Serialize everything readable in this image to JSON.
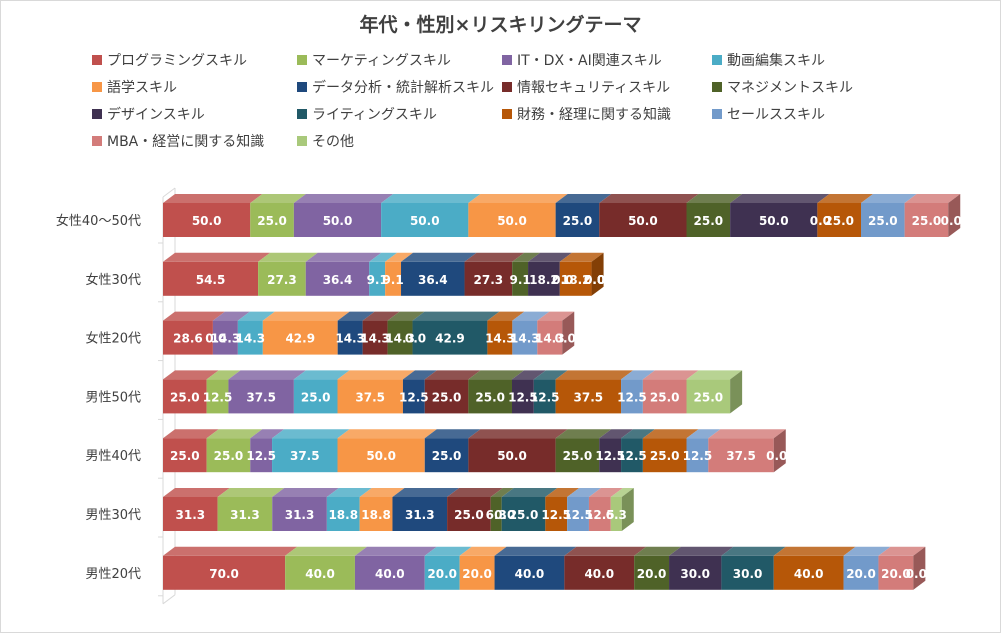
{
  "chart_data": {
    "type": "bar",
    "stacked": true,
    "orientation": "horizontal",
    "three_d": true,
    "title": "年代・性別×リスキリングテーマ",
    "legend_position": "top",
    "categories": [
      "女性40～50代",
      "女性30代",
      "女性20代",
      "男性50代",
      "男性40代",
      "男性30代",
      "男性20代"
    ],
    "series": [
      {
        "name": "プログラミングスキル",
        "color": "#c0504d",
        "values": [
          50.0,
          54.5,
          28.6,
          25.0,
          25.0,
          31.3,
          70.0
        ]
      },
      {
        "name": "マーケティングスキル",
        "color": "#9bbb59",
        "values": [
          25.0,
          27.3,
          0.0,
          12.5,
          25.0,
          31.3,
          40.0
        ]
      },
      {
        "name": "IT・DX・AI関連スキル",
        "color": "#8064a2",
        "values": [
          50.0,
          36.4,
          14.3,
          37.5,
          12.5,
          31.3,
          40.0
        ]
      },
      {
        "name": "動画編集スキル",
        "color": "#4bacc6",
        "values": [
          50.0,
          9.1,
          14.3,
          25.0,
          37.5,
          18.8,
          20.0
        ]
      },
      {
        "name": "語学スキル",
        "color": "#f79646",
        "values": [
          50.0,
          9.1,
          42.9,
          37.5,
          50.0,
          18.8,
          20.0
        ]
      },
      {
        "name": "データ分析・統計解析スキル",
        "color": "#1f497d",
        "values": [
          25.0,
          36.4,
          14.3,
          12.5,
          25.0,
          31.3,
          40.0
        ]
      },
      {
        "name": "情報セキュリティスキル",
        "color": "#772c2a",
        "values": [
          50.0,
          27.3,
          14.3,
          25.0,
          50.0,
          25.0,
          40.0
        ]
      },
      {
        "name": "マネジメントスキル",
        "color": "#4f6228",
        "values": [
          25.0,
          9.1,
          14.3,
          25.0,
          25.0,
          6.3,
          20.0
        ]
      },
      {
        "name": "デザインスキル",
        "color": "#3f3151",
        "values": [
          50.0,
          18.2,
          0.0,
          12.5,
          12.5,
          0.0,
          30.0
        ]
      },
      {
        "name": "ライティングスキル",
        "color": "#215967",
        "values": [
          0.0,
          0.0,
          42.9,
          12.5,
          12.5,
          25.0,
          30.0
        ]
      },
      {
        "name": "財務・経理に関する知識",
        "color": "#b65708",
        "values": [
          25.0,
          18.2,
          14.3,
          37.5,
          25.0,
          12.5,
          40.0
        ]
      },
      {
        "name": "セールススキル",
        "color": "#729aca",
        "values": [
          25.0,
          0.0,
          14.3,
          12.5,
          12.5,
          12.5,
          20.0
        ]
      },
      {
        "name": "MBA・経営に関する知識",
        "color": "#d37c7a",
        "values": [
          25.0,
          0.0,
          14.3,
          25.0,
          37.5,
          12.5,
          20.0
        ]
      },
      {
        "name": "その他",
        "color": "#a9c97b",
        "values": [
          0.0,
          0.0,
          0.0,
          25.0,
          0.0,
          6.3,
          0.0
        ]
      }
    ]
  }
}
